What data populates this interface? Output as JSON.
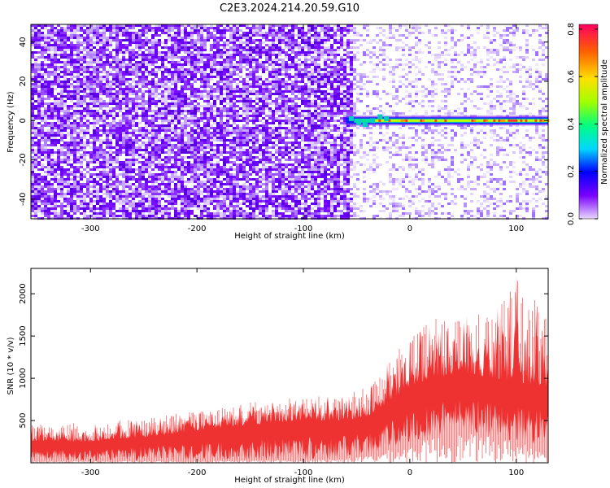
{
  "title": "C2E3.2024.214.20.59.G10",
  "chart_data": [
    {
      "type": "heatmap",
      "xlabel": "Height of straight line (km)",
      "ylabel": "Frequency (Hz)",
      "xlim": [
        -356,
        130
      ],
      "ylim": [
        -50,
        49
      ],
      "x_ticks": [
        -300,
        -200,
        -100,
        0,
        100
      ],
      "x_tick_labels": [
        "-300",
        "-200",
        "-100",
        "0",
        "100"
      ],
      "y_ticks": [
        -40,
        -20,
        0,
        20,
        40
      ],
      "y_tick_labels": [
        "-40",
        "-20",
        "0",
        "20",
        "40"
      ],
      "colorbar": {
        "label": "Normalized spectral amplitude",
        "range": [
          0,
          0.82
        ],
        "ticks": [
          0,
          0.2,
          0.4,
          0.6,
          0.8
        ],
        "tick_labels": [
          "0.0",
          "0.2",
          "0.4",
          "0.6",
          "0.8"
        ],
        "colormap": "rainbow (violet-blue-cyan-green-yellow-red)"
      },
      "features": {
        "dense_noise_x_range": [
          -356,
          -60
        ],
        "sparse_noise_x_range": [
          -50,
          130
        ],
        "carrier_line_frequency": 0,
        "carrier_line_x_range": [
          -60,
          130
        ],
        "carrier_line_peak_amplitude": 0.8
      },
      "grid": false
    },
    {
      "type": "area",
      "xlabel": "Height of straight line (km)",
      "ylabel": "SNR (10 * v/v)",
      "xlim": [
        -356,
        130
      ],
      "ylim": [
        0,
        2300
      ],
      "x_ticks": [
        -300,
        -200,
        -100,
        0,
        100
      ],
      "x_tick_labels": [
        "-300",
        "-200",
        "-100",
        "0",
        "100"
      ],
      "y_ticks": [
        500,
        1000,
        1500,
        2000
      ],
      "y_tick_labels": [
        "500",
        "1000",
        "1500",
        "2000"
      ],
      "series_color": "#ee3333",
      "envelope": {
        "x": [
          -356,
          -300,
          -250,
          -200,
          -150,
          -100,
          -60,
          -40,
          -20,
          0,
          20,
          50,
          80,
          100,
          130
        ],
        "low": [
          20,
          20,
          20,
          20,
          30,
          30,
          50,
          80,
          150,
          200,
          300,
          350,
          300,
          250,
          200
        ],
        "mid": [
          250,
          250,
          300,
          380,
          450,
          500,
          500,
          550,
          700,
          900,
          1000,
          1050,
          1000,
          950,
          900
        ],
        "high": [
          450,
          480,
          520,
          620,
          720,
          780,
          800,
          900,
          1200,
          1500,
          1700,
          1750,
          1800,
          2250,
          1700
        ]
      },
      "grid": false
    }
  ]
}
